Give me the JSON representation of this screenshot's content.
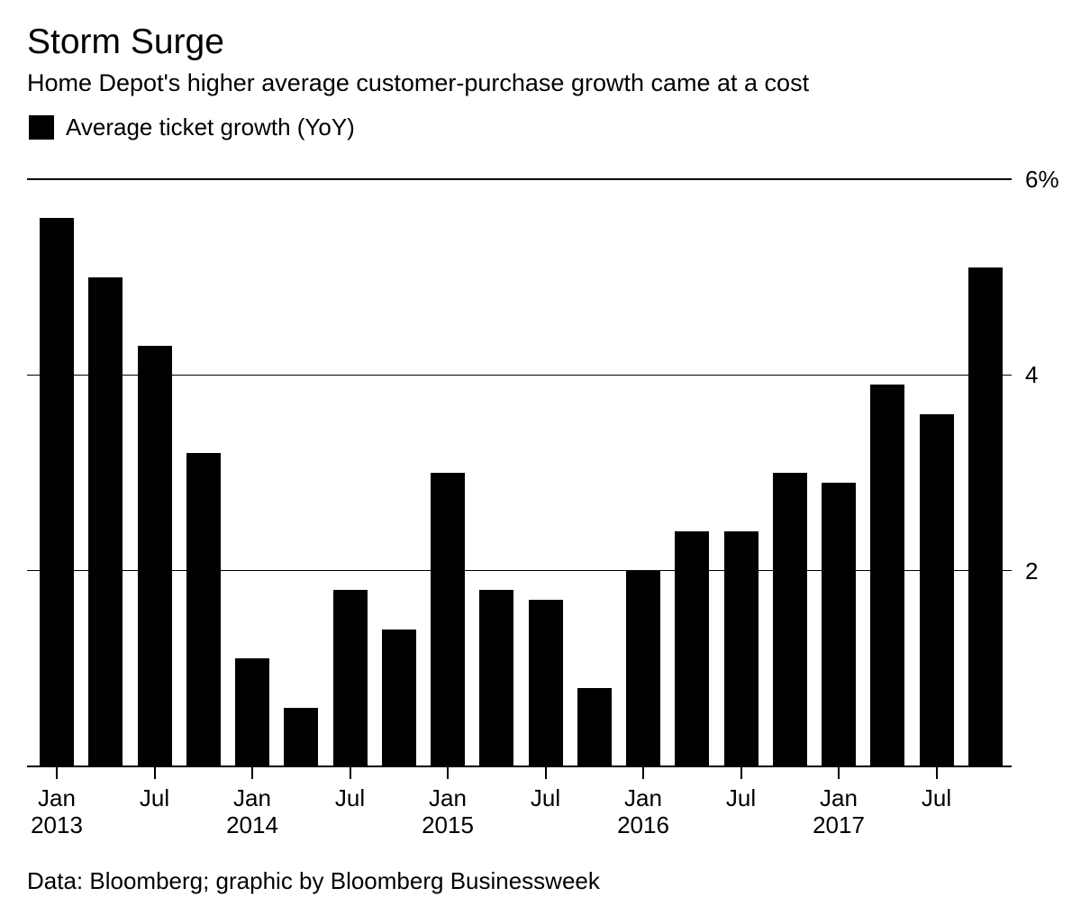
{
  "header": {
    "title": "Storm Surge",
    "subtitle": "Home Depot's higher average customer-purchase growth came at a cost"
  },
  "legend": {
    "label": "Average ticket growth (YoY)",
    "swatch_color": "#000000"
  },
  "footer": {
    "source": "Data: Bloomberg; graphic by Bloomberg Businessweek"
  },
  "chart_data": {
    "type": "bar",
    "title": "Storm Surge",
    "subtitle": "Home Depot's higher average customer-purchase growth came at a cost",
    "legend_entries": [
      "Average ticket growth (YoY)"
    ],
    "unit": "percent, year-over-year",
    "categories": [
      "Jan 2013",
      "Apr 2013",
      "Jul 2013",
      "Oct 2013",
      "Jan 2014",
      "Apr 2014",
      "Jul 2014",
      "Oct 2014",
      "Jan 2015",
      "Apr 2015",
      "Jul 2015",
      "Oct 2015",
      "Jan 2016",
      "Apr 2016",
      "Jul 2016",
      "Oct 2016",
      "Jan 2017",
      "Apr 2017",
      "Jul 2017",
      "Oct 2017"
    ],
    "values": [
      5.6,
      5.0,
      4.3,
      3.2,
      1.1,
      0.6,
      1.8,
      1.4,
      3.0,
      1.8,
      1.7,
      0.8,
      2.0,
      2.4,
      2.4,
      3.0,
      2.9,
      3.9,
      3.6,
      5.1
    ],
    "ylim": [
      0,
      6
    ],
    "y_ticks": [
      {
        "value": 6,
        "label": "6%"
      },
      {
        "value": 4,
        "label": "4"
      },
      {
        "value": 2,
        "label": "2"
      }
    ],
    "x_ticks": [
      {
        "bar_index": 0,
        "month": "Jan",
        "year": "2013"
      },
      {
        "bar_index": 2,
        "month": "Jul",
        "year": ""
      },
      {
        "bar_index": 4,
        "month": "Jan",
        "year": "2014"
      },
      {
        "bar_index": 6,
        "month": "Jul",
        "year": ""
      },
      {
        "bar_index": 8,
        "month": "Jan",
        "year": "2015"
      },
      {
        "bar_index": 10,
        "month": "Jul",
        "year": ""
      },
      {
        "bar_index": 12,
        "month": "Jan",
        "year": "2016"
      },
      {
        "bar_index": 14,
        "month": "Jul",
        "year": ""
      },
      {
        "bar_index": 16,
        "month": "Jan",
        "year": "2017"
      },
      {
        "bar_index": 18,
        "month": "Jul",
        "year": ""
      }
    ],
    "bar_color": "#000000",
    "background_color": "#ffffff",
    "grid": "horizontal gridlines at 2, 4, 6 with labels on right; solid baseline at 0",
    "legend_position": "top-left",
    "source": "Data: Bloomberg; graphic by Bloomberg Businessweek"
  }
}
